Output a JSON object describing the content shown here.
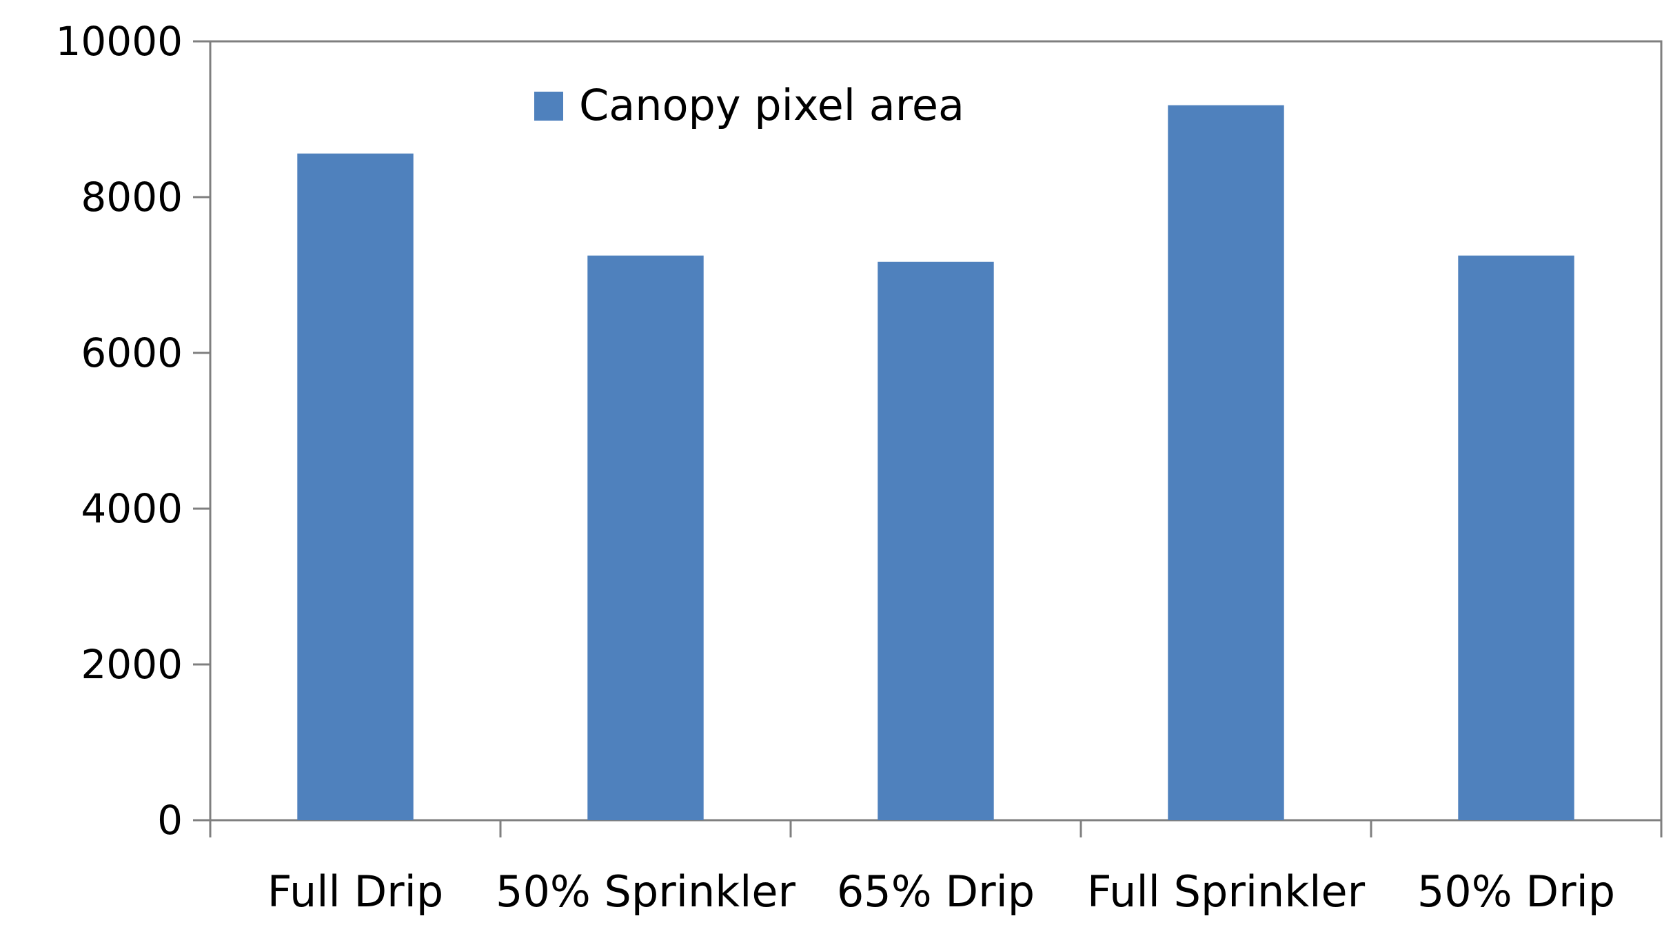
{
  "chart_data": {
    "type": "bar",
    "categories": [
      "Full Drip",
      "50% Sprinkler",
      "65% Drip",
      "Full Sprinkler",
      "50% Drip"
    ],
    "series": [
      {
        "name": "Canopy pixel area",
        "values": [
          8560,
          7250,
          7170,
          9180,
          7250
        ],
        "color": "#4f81bd"
      }
    ],
    "y_ticks": [
      "0",
      "2000",
      "4000",
      "6000",
      "8000",
      "10000"
    ],
    "ylim": [
      0,
      10000
    ],
    "grid": false,
    "legend_position": "top-center"
  }
}
